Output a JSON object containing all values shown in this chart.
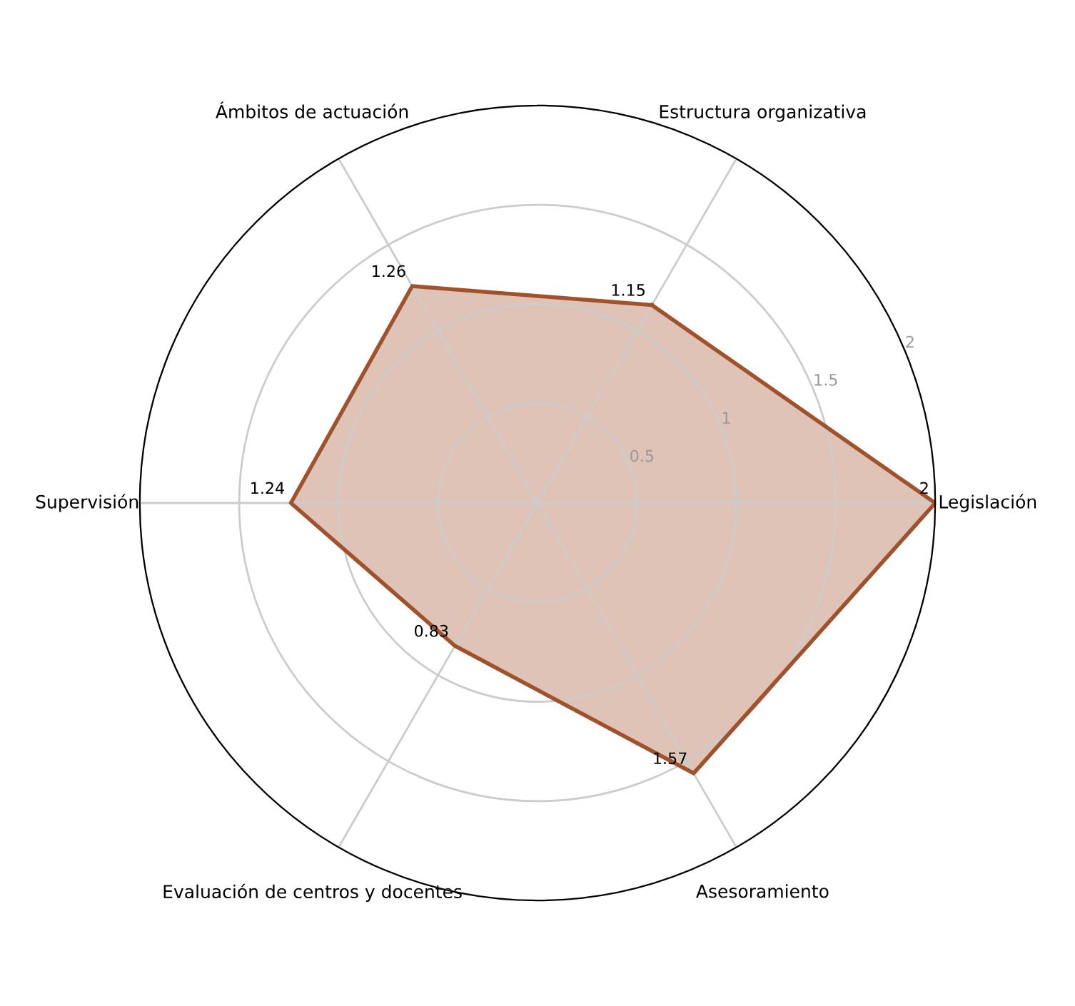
{
  "chart_data": {
    "type": "radar",
    "categories": [
      "Estructura organizativa",
      "Legislación",
      "Asesoramiento",
      "Evaluación de centros y docentes",
      "Supervisión",
      "Ámbitos de actuación"
    ],
    "series": [
      {
        "color": "#a0522d",
        "values": [
          1.15,
          2,
          1.57,
          0.83,
          1.24,
          1.26
        ]
      }
    ],
    "ylim": [
      0,
      2
    ],
    "yticks": [
      0.5,
      1,
      1.5,
      2
    ],
    "grid": true,
    "data_labels": true,
    "legend": false,
    "marker": "none",
    "line_style": "solid"
  }
}
